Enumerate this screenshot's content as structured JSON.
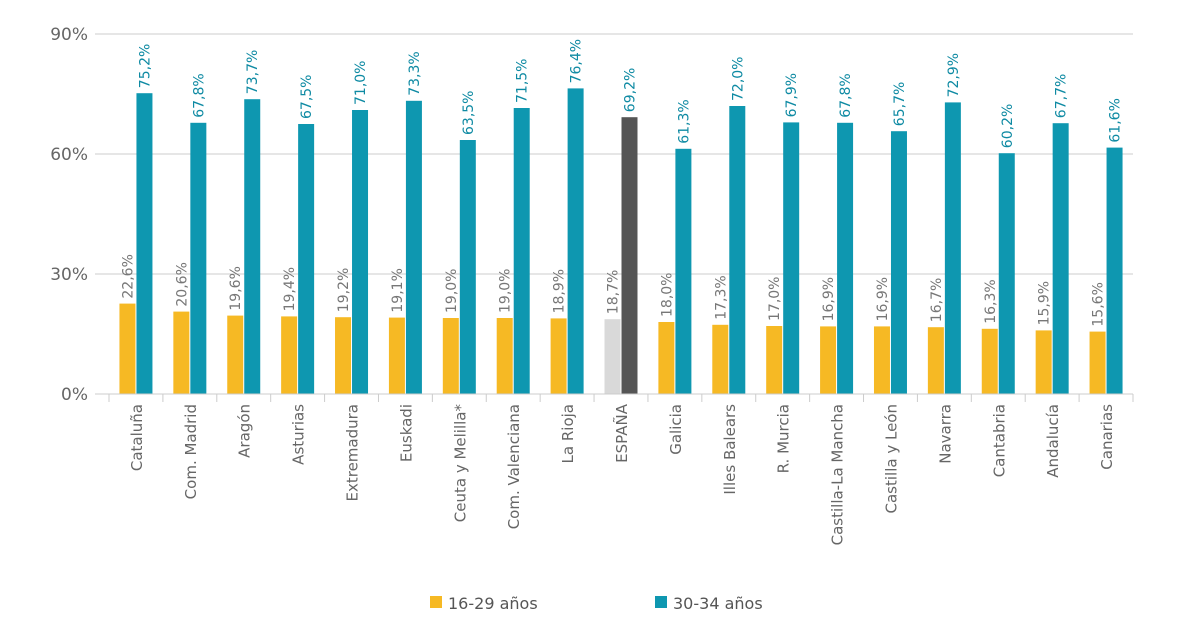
{
  "chart_data": {
    "type": "bar",
    "categories": [
      "Cataluña",
      "Com. Madrid",
      "Aragón",
      "Asturias",
      "Extremadura",
      "Euskadi",
      "Ceuta y Melilla*",
      "Com. Valenciana",
      "La Rioja",
      "ESPAÑA",
      "Galicia",
      "Illes Balears",
      "R. Murcia",
      "Castilla-La Mancha",
      "Castilla y León",
      "Navarra",
      "Cantabria",
      "Andalucía",
      "Canarias"
    ],
    "series": [
      {
        "name": "16-29 años",
        "color": "#f6b924",
        "label_color": "#777777",
        "values": [
          22.6,
          20.6,
          19.6,
          19.4,
          19.2,
          19.1,
          19.0,
          19.0,
          18.9,
          18.7,
          18.0,
          17.3,
          17.0,
          16.9,
          16.9,
          16.7,
          16.3,
          15.9,
          15.6
        ],
        "value_labels": [
          "22,6%",
          "20,6%",
          "19,6%",
          "19,4%",
          "19,2%",
          "19,1%",
          "19,0%",
          "19,0%",
          "18,9%",
          "18,7%",
          "18,0%",
          "17,3%",
          "17,0%",
          "16,9%",
          "16,9%",
          "16,7%",
          "16,3%",
          "15,9%",
          "15,6%"
        ],
        "point_colors": [
          "#f6b924",
          "#f6b924",
          "#f6b924",
          "#f6b924",
          "#f6b924",
          "#f6b924",
          "#f6b924",
          "#f6b924",
          "#f6b924",
          "#d9d9d9",
          "#f6b924",
          "#f6b924",
          "#f6b924",
          "#f6b924",
          "#f6b924",
          "#f6b924",
          "#f6b924",
          "#f6b924",
          "#f6b924"
        ]
      },
      {
        "name": "30-34 años",
        "color": "#0e97b0",
        "label_color": "#0e8aa3",
        "values": [
          75.2,
          67.8,
          73.7,
          67.5,
          71.0,
          73.3,
          63.5,
          71.5,
          76.4,
          69.2,
          61.3,
          72.0,
          67.9,
          67.8,
          65.7,
          72.9,
          60.2,
          67.7,
          61.6
        ],
        "value_labels": [
          "75,2%",
          "67,8%",
          "73,7%",
          "67,5%",
          "71,0%",
          "73,3%",
          "63,5%",
          "71,5%",
          "76,4%",
          "69,2%",
          "61,3%",
          "72,0%",
          "67,9%",
          "67,8%",
          "65,7%",
          "72,9%",
          "60,2%",
          "67,7%",
          "61,6%"
        ],
        "point_colors": [
          "#0e97b0",
          "#0e97b0",
          "#0e97b0",
          "#0e97b0",
          "#0e97b0",
          "#0e97b0",
          "#0e97b0",
          "#0e97b0",
          "#0e97b0",
          "#555555",
          "#0e97b0",
          "#0e97b0",
          "#0e97b0",
          "#0e97b0",
          "#0e97b0",
          "#0e97b0",
          "#0e97b0",
          "#0e97b0",
          "#0e97b0"
        ]
      }
    ],
    "ylim": [
      0,
      90
    ],
    "yticks": [
      {
        "value": 0,
        "label": "0%"
      },
      {
        "value": 30,
        "label": "30%"
      },
      {
        "value": 60,
        "label": "60%"
      },
      {
        "value": 90,
        "label": "90%"
      }
    ],
    "grid": true,
    "legend": "bottom"
  }
}
